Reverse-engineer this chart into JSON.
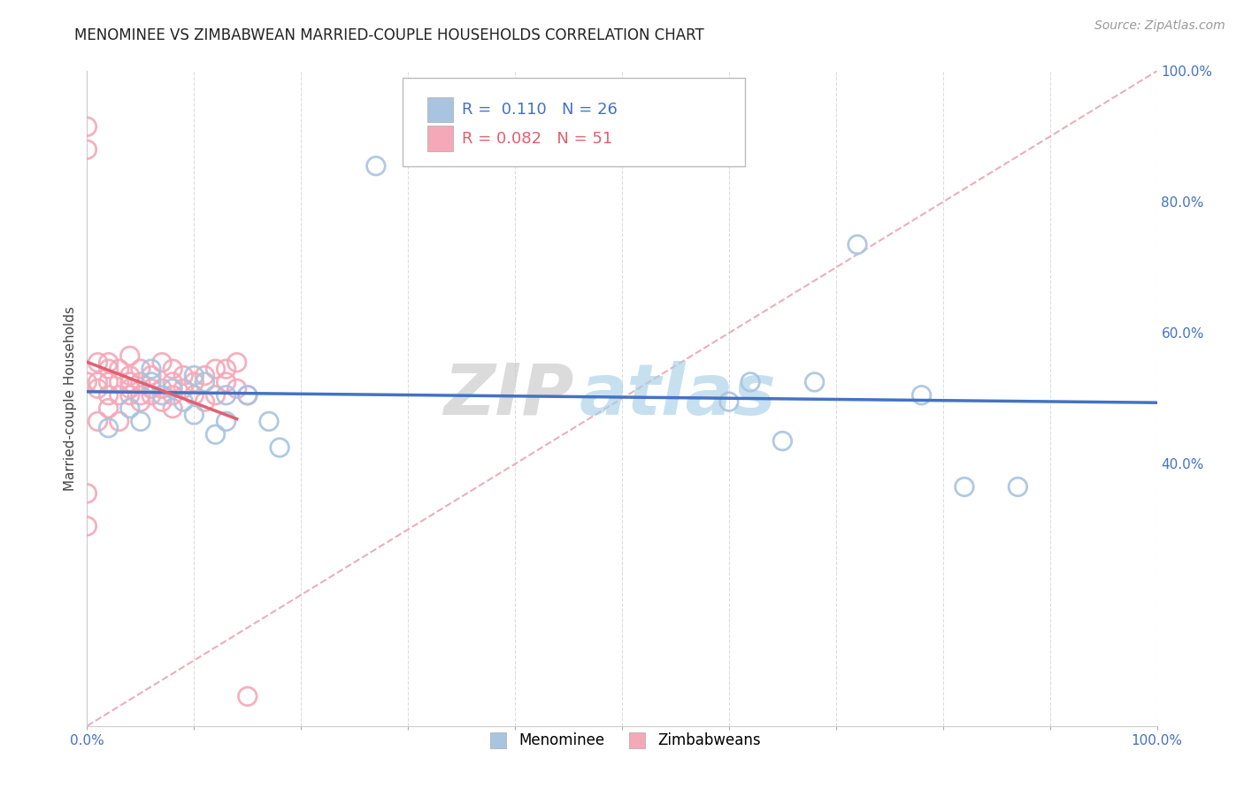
{
  "title": "MENOMINEE VS ZIMBABWEAN MARRIED-COUPLE HOUSEHOLDS CORRELATION CHART",
  "source": "Source: ZipAtlas.com",
  "ylabel": "Married-couple Households",
  "xlim": [
    0,
    1.0
  ],
  "ylim": [
    0,
    1.0
  ],
  "xticks": [
    0.0,
    0.1,
    0.2,
    0.3,
    0.4,
    0.5,
    0.6,
    0.7,
    0.8,
    0.9,
    1.0
  ],
  "yticks": [
    0.0,
    0.2,
    0.4,
    0.6,
    0.8,
    1.0
  ],
  "xticklabels_show": [
    "0.0%",
    "100.0%"
  ],
  "yticklabels": [
    "100.0%",
    "80.0%",
    "60.0%",
    "40.0%"
  ],
  "menominee_R": 0.11,
  "menominee_N": 26,
  "zimbabwe_R": 0.082,
  "zimbabwe_N": 51,
  "menominee_color": "#a8c4e0",
  "zimbabwe_color": "#f4a8b8",
  "menominee_line_color": "#4472c4",
  "zimbabwe_line_color": "#e06070",
  "grid_color": "#dddddd",
  "watermark_zip": "ZIP",
  "watermark_atlas": "atlas",
  "menominee_x": [
    0.02,
    0.04,
    0.05,
    0.06,
    0.06,
    0.07,
    0.08,
    0.09,
    0.1,
    0.1,
    0.11,
    0.12,
    0.13,
    0.13,
    0.15,
    0.17,
    0.18,
    0.27,
    0.6,
    0.62,
    0.65,
    0.68,
    0.72,
    0.78,
    0.82,
    0.87
  ],
  "menominee_y": [
    0.455,
    0.485,
    0.465,
    0.545,
    0.525,
    0.505,
    0.515,
    0.495,
    0.535,
    0.475,
    0.525,
    0.445,
    0.465,
    0.505,
    0.505,
    0.465,
    0.425,
    0.855,
    0.495,
    0.525,
    0.435,
    0.525,
    0.735,
    0.505,
    0.365,
    0.365
  ],
  "zimbabwe_x": [
    0.0,
    0.0,
    0.0,
    0.0,
    0.0,
    0.01,
    0.01,
    0.01,
    0.01,
    0.02,
    0.02,
    0.02,
    0.02,
    0.02,
    0.03,
    0.03,
    0.03,
    0.03,
    0.04,
    0.04,
    0.04,
    0.04,
    0.04,
    0.05,
    0.05,
    0.05,
    0.05,
    0.06,
    0.06,
    0.06,
    0.07,
    0.07,
    0.07,
    0.08,
    0.08,
    0.08,
    0.08,
    0.09,
    0.09,
    0.1,
    0.1,
    0.11,
    0.11,
    0.12,
    0.12,
    0.13,
    0.13,
    0.14,
    0.14,
    0.15,
    0.15
  ],
  "zimbabwe_y": [
    0.305,
    0.355,
    0.525,
    0.88,
    0.915,
    0.465,
    0.515,
    0.525,
    0.555,
    0.485,
    0.505,
    0.525,
    0.545,
    0.555,
    0.465,
    0.505,
    0.525,
    0.545,
    0.505,
    0.515,
    0.525,
    0.535,
    0.565,
    0.495,
    0.505,
    0.525,
    0.545,
    0.505,
    0.515,
    0.535,
    0.495,
    0.515,
    0.555,
    0.485,
    0.505,
    0.525,
    0.545,
    0.515,
    0.535,
    0.505,
    0.525,
    0.495,
    0.535,
    0.505,
    0.545,
    0.525,
    0.545,
    0.515,
    0.555,
    0.505,
    0.045
  ],
  "background_color": "#ffffff",
  "title_fontsize": 12,
  "label_fontsize": 11,
  "tick_fontsize": 11,
  "legend_fontsize": 13
}
